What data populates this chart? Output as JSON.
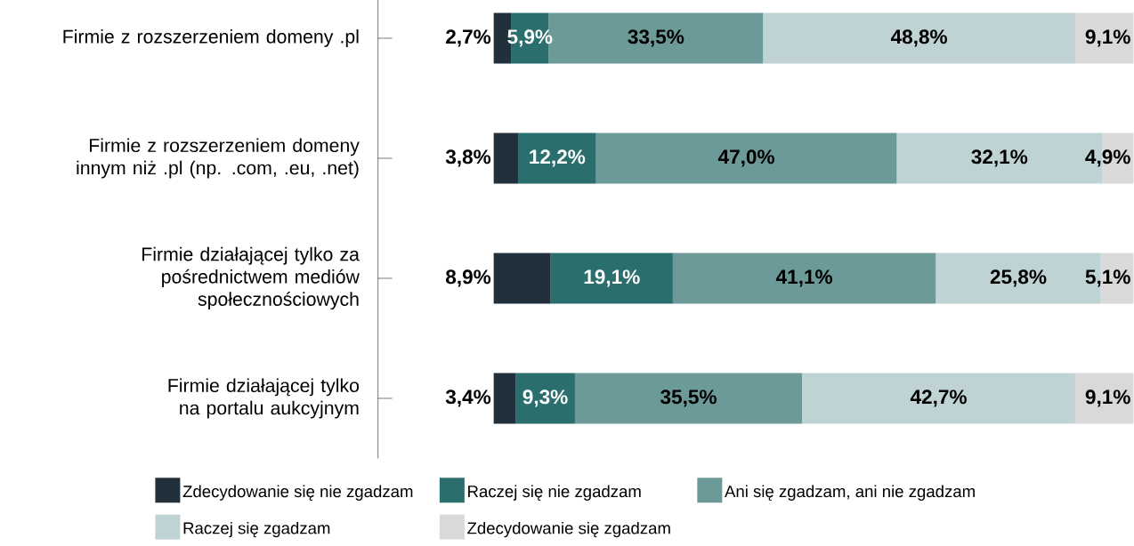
{
  "chart_data": {
    "type": "bar",
    "orientation": "horizontal",
    "stacked": true,
    "legend": "bottom",
    "categories": [
      "Firmie z rozszerzeniem domeny .pl",
      "Firmie z rozszerzeniem domeny innym niż .pl (np. .com, .eu, .net)",
      "Firmie działającej tylko za pośrednictwem mediów społecznościowych",
      "Firmie działającej tylko na portalu aukcyjnym"
    ],
    "series": [
      {
        "name": "Zdecydowanie się nie zgadzam",
        "color": "#22303c",
        "values": [
          2.7,
          3.8,
          8.9,
          3.4
        ],
        "value_labels": [
          "2,7%",
          "3,8%",
          "8,9%",
          "3,4%"
        ]
      },
      {
        "name": "Raczej się nie zgadzam",
        "color": "#2b6e6e",
        "values": [
          5.9,
          12.2,
          19.1,
          9.3
        ],
        "value_labels": [
          "5,9%",
          "12,2%",
          "19,1%",
          "9,3%"
        ]
      },
      {
        "name": "Ani się zgadzam, ani nie zgadzam",
        "color": "#6b9a98",
        "values": [
          33.5,
          47.0,
          41.1,
          35.5
        ],
        "value_labels": [
          "33,5%",
          "47,0%",
          "41,1%",
          "35,5%"
        ]
      },
      {
        "name": "Raczej się zgadzam",
        "color": "#c0d3d4",
        "values": [
          48.8,
          32.1,
          25.8,
          42.7
        ],
        "value_labels": [
          "48,8%",
          "32,1%",
          "25,8%",
          "42,7%"
        ]
      },
      {
        "name": "Zdecydowanie się zgadzam",
        "color": "#d9d9d9",
        "values": [
          9.1,
          4.9,
          5.1,
          9.1
        ],
        "value_labels": [
          "9,1%",
          "4,9%",
          "5,1%",
          "9,1%"
        ]
      }
    ]
  }
}
